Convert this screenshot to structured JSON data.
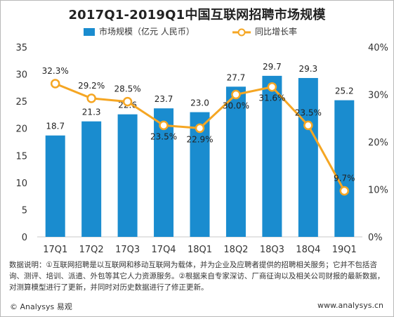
{
  "title": "2017Q1-2019Q1中国互联网招聘市场规模",
  "colors": {
    "bar": "#1a8ccf",
    "line": "#f5a623",
    "marker_fill": "#ffffff"
  },
  "chart_data": {
    "type": "bar",
    "categories": [
      "17Q1",
      "17Q2",
      "17Q3",
      "17Q4",
      "18Q1",
      "18Q2",
      "18Q3",
      "18Q4",
      "19Q1"
    ],
    "series": [
      {
        "name": "市场规模（亿元 人民币）",
        "type": "bar",
        "axis": "left",
        "values": [
          18.7,
          21.3,
          22.6,
          23.7,
          23.0,
          27.7,
          29.7,
          29.3,
          25.2
        ],
        "labels": [
          "18.7",
          "21.3",
          "22.6",
          "23.7",
          "23.0",
          "27.7",
          "29.7",
          "29.3",
          "25.2"
        ]
      },
      {
        "name": "同比增长率",
        "type": "line",
        "axis": "right",
        "values": [
          32.3,
          29.2,
          28.5,
          23.5,
          22.9,
          30.0,
          31.6,
          23.5,
          9.7
        ],
        "labels": [
          "32.3%",
          "29.2%",
          "28.5%",
          "23.5%",
          "22.9%",
          "30.0%",
          "31.6%",
          "23.5%",
          "9.7%"
        ]
      }
    ],
    "y_left": {
      "min": 0,
      "max": 35,
      "ticks": [
        "0",
        "5",
        "10",
        "15",
        "20",
        "25",
        "30",
        "35"
      ]
    },
    "y_right": {
      "min": 0,
      "max": 40,
      "ticks": [
        "0%",
        "10%",
        "20%",
        "30%",
        "40%"
      ]
    },
    "legend_position": "top",
    "grid": false
  },
  "notes": "数据说明：①互联网招聘是以互联网和移动互联网为载体，并为企业及应聘者提供的招聘相关服务；它并不包括咨询、测评、培训、派遣、外包等其它人力资源服务。②根据来自专家深访、厂商征询以及相关公司财报的最新数据，对测算模型进行了更新，并同时对历史数据进行了修正更新。",
  "footer": {
    "left": "© Analysys 易观",
    "right": "www.analysys.cn"
  }
}
